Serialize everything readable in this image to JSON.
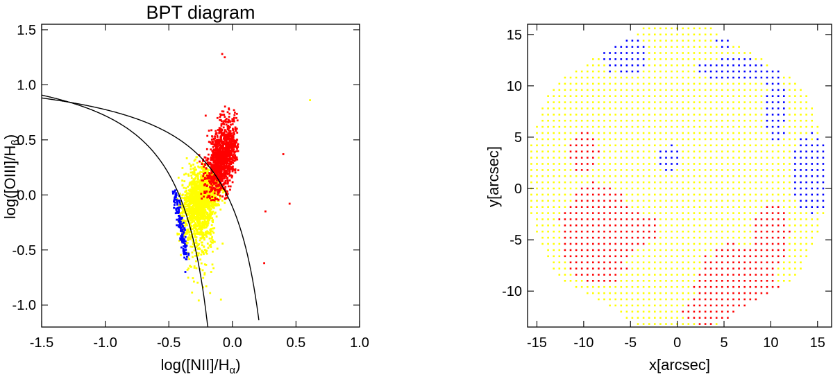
{
  "colors": {
    "star-forming": "#ffff00",
    "composite": "#0000ff",
    "agn": "#ff0000",
    "axes": "#000000"
  },
  "chart_data": [
    {
      "type": "scatter",
      "title": "BPT diagram",
      "xlabel": "log([NII]/H",
      "xlabel_sub": "α",
      "xlabel_close": ")",
      "ylabel": "log([OIII]/H",
      "ylabel_sub": "β",
      "ylabel_close": ")",
      "xlim": [
        -1.5,
        1.0
      ],
      "ylim": [
        -1.2,
        1.55
      ],
      "xticks": [
        -1.5,
        -1.0,
        -0.5,
        0.0,
        0.5,
        1.0
      ],
      "xtick_labels": [
        "-1.5",
        "-1.0",
        "-0.5",
        "0.0",
        "0.5",
        "1.0"
      ],
      "yticks": [
        -1.0,
        -0.5,
        0.0,
        0.5,
        1.0,
        1.5
      ],
      "ytick_labels": [
        "-1.0",
        "-0.5",
        "0.0",
        "0.5",
        "1.0",
        "1.5"
      ],
      "grid": false,
      "legend": false,
      "curves": [
        {
          "equation": "0.61/(x-0.05)+1.30",
          "x_range": [
            -1.5,
            -0.15
          ]
        },
        {
          "equation": "0.61/(x-0.47)+1.19",
          "x_range": [
            -1.5,
            0.21
          ]
        }
      ],
      "series": [
        {
          "color": "#0000ff",
          "count": 160,
          "x_range": [
            -0.48,
            -0.33
          ],
          "y_range": [
            -0.7,
            0.05
          ],
          "centroid": [
            -0.42,
            -0.2
          ]
        },
        {
          "color": "#ffff00",
          "count": 1900,
          "x_range": [
            -0.45,
            0.0
          ],
          "y_range": [
            -0.95,
            0.35
          ],
          "centroid": [
            -0.25,
            0.0
          ]
        },
        {
          "color": "#ff0000",
          "count": 1250,
          "x_range": [
            -0.25,
            0.15
          ],
          "y_range": [
            -0.05,
            0.8
          ],
          "centroid": [
            -0.08,
            0.3
          ]
        }
      ],
      "outliers": [
        {
          "x": -0.08,
          "y": 1.28,
          "color": "#ff0000"
        },
        {
          "x": -0.06,
          "y": 1.25,
          "color": "#ff0000"
        },
        {
          "x": 0.4,
          "y": 0.37,
          "color": "#ff0000"
        },
        {
          "x": 0.45,
          "y": -0.08,
          "color": "#ff0000"
        },
        {
          "x": 0.26,
          "y": -0.15,
          "color": "#ff0000"
        },
        {
          "x": 0.25,
          "y": -0.62,
          "color": "#ff0000"
        },
        {
          "x": -0.21,
          "y": 0.72,
          "color": "#ff0000"
        },
        {
          "x": -0.09,
          "y": -0.95,
          "color": "#ffff00"
        },
        {
          "x": 0.61,
          "y": 0.86,
          "color": "#ffff00"
        },
        {
          "x": -0.37,
          "y": -0.7,
          "color": "#0000ff"
        }
      ]
    },
    {
      "type": "scatter",
      "title": "",
      "xlabel": "x[arcsec]",
      "ylabel": "y[arcsec]",
      "xlim": [
        -16,
        16.5
      ],
      "ylim": [
        -13.5,
        16
      ],
      "xticks": [
        -15,
        -10,
        -5,
        0,
        5,
        10,
        15
      ],
      "xtick_labels": [
        "-15",
        "-10",
        "-5",
        "0",
        "5",
        "10",
        "15"
      ],
      "yticks": [
        -10,
        -5,
        0,
        5,
        10,
        15
      ],
      "ytick_labels": [
        "-10",
        "-5",
        "0",
        "5",
        "10",
        "15"
      ],
      "grid": false,
      "legend": false,
      "grid_spacing_arcsec": 0.6,
      "field_radius_arcsec": 16,
      "background_color": "#ffff00",
      "regions": [
        {
          "color": "#0000ff",
          "cx": 14.5,
          "cy": 1.5,
          "rx": 2.2,
          "ry": 4.0
        },
        {
          "color": "#0000ff",
          "cx": 10.5,
          "cy": 8.0,
          "rx": 1.3,
          "ry": 3.2
        },
        {
          "color": "#0000ff",
          "cx": 6.0,
          "cy": 11.5,
          "rx": 4.0,
          "ry": 1.2
        },
        {
          "color": "#0000ff",
          "cx": -5.5,
          "cy": 13.0,
          "rx": 2.5,
          "ry": 2.0
        },
        {
          "color": "#0000ff",
          "cx": 5.0,
          "cy": 14.5,
          "rx": 0.8,
          "ry": 1.0
        },
        {
          "color": "#0000ff",
          "cx": -0.8,
          "cy": 3.0,
          "rx": 1.3,
          "ry": 1.3
        },
        {
          "color": "#ff0000",
          "cx": -8.5,
          "cy": -4.5,
          "rx": 4.0,
          "ry": 5.0
        },
        {
          "color": "#ff0000",
          "cx": -5.5,
          "cy": -4.0,
          "rx": 3.5,
          "ry": 2.0
        },
        {
          "color": "#ff0000",
          "cx": -10.0,
          "cy": 3.5,
          "rx": 1.6,
          "ry": 2.0
        },
        {
          "color": "#ff0000",
          "cx": 6.5,
          "cy": -9.0,
          "rx": 4.2,
          "ry": 3.6
        },
        {
          "color": "#ff0000",
          "cx": 10.0,
          "cy": -4.5,
          "rx": 2.0,
          "ry": 3.0
        },
        {
          "color": "#ff0000",
          "cx": 3.0,
          "cy": -12.0,
          "rx": 2.5,
          "ry": 1.4
        }
      ]
    }
  ]
}
